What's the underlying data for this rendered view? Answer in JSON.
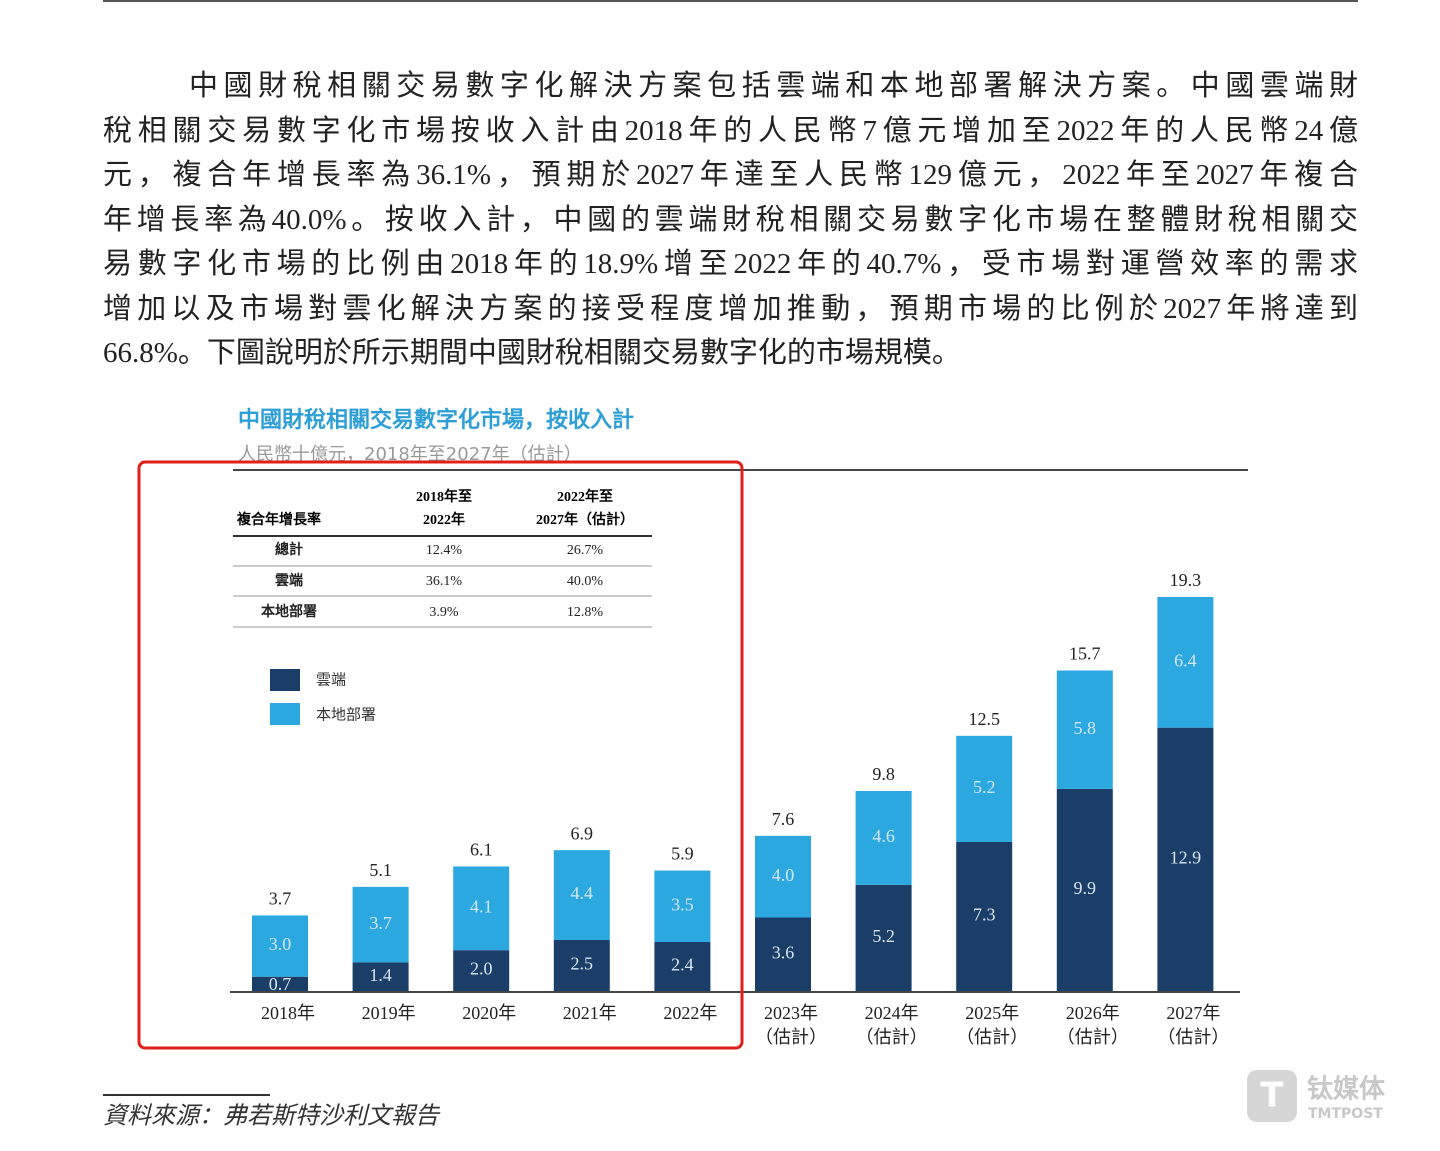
{
  "paragraph": [
    "中國財稅相關交易數字化解決方案包括雲端和本地部署解決方案。中國雲端財",
    "稅相關交易數字化市場按收入計由2018年的人民幣7億元增加至2022年的人民幣24億",
    "元，複合年增長率為36.1%，預期於2027年達至人民幣129億元，2022年至2027年複合",
    "年增長率為40.0%。按收入計，中國的雲端財稅相關交易數字化市場在整體財稅相關交",
    "易數字化市場的比例由2018年的18.9%增至2022年的40.7%，受市場對運營效率的需求",
    "增加以及市場對雲化解決方案的接受程度增加推動，預期市場的比例於2027年將達到",
    "66.8%。下圖說明於所示期間中國財稅相關交易數字化的市場規模。"
  ],
  "cagr_table": {
    "header": [
      "複合年增長率",
      "2018年至2022年",
      "2022年至2027年（估計）"
    ],
    "rows": [
      [
        "總計",
        "12.4%",
        "26.7%"
      ],
      [
        "雲端",
        "36.1%",
        "40.0%"
      ],
      [
        "本地部署",
        "3.9%",
        "12.8%"
      ]
    ]
  },
  "chart_data": {
    "type": "stacked-bar",
    "title": "中國財稅相關交易數字化市場，按收入計",
    "subtitle": "人民幣十億元，2018年至2027年（估計）",
    "categories": [
      "2018年",
      "2019年",
      "2020年",
      "2021年",
      "2022年",
      "2023年（估計）",
      "2024年（估計）",
      "2025年（估計）",
      "2026年（估計）",
      "2027年（估計）"
    ],
    "series": [
      {
        "name": "雲端",
        "color": "#1b3e68",
        "values": [
          0.7,
          1.4,
          2.0,
          2.5,
          2.4,
          3.6,
          5.2,
          7.3,
          9.9,
          12.9
        ],
        "value_labels": [
          "0.7",
          "1.4",
          "2.0",
          "2.5",
          "2.4",
          "3.6",
          "5.2",
          "7.3",
          "9.9",
          "12.9"
        ]
      },
      {
        "name": "本地部署",
        "color": "#2aa8df",
        "values": [
          3.0,
          3.7,
          4.1,
          4.4,
          3.5,
          4.0,
          4.6,
          5.2,
          5.8,
          6.4
        ],
        "value_labels": [
          "3.0",
          "3.7",
          "4.1",
          "4.4",
          "3.5",
          "4.0",
          "4.6",
          "5.2",
          "5.8",
          "6.4"
        ]
      }
    ],
    "totals": [
      3.7,
      5.1,
      6.1,
      6.9,
      5.9,
      7.6,
      9.8,
      12.5,
      15.7,
      19.3
    ]
  },
  "source": "資料來源：弗若斯特沙利文報告",
  "watermark": {
    "brand": "钛媒体",
    "sub": "TMTPOST"
  }
}
